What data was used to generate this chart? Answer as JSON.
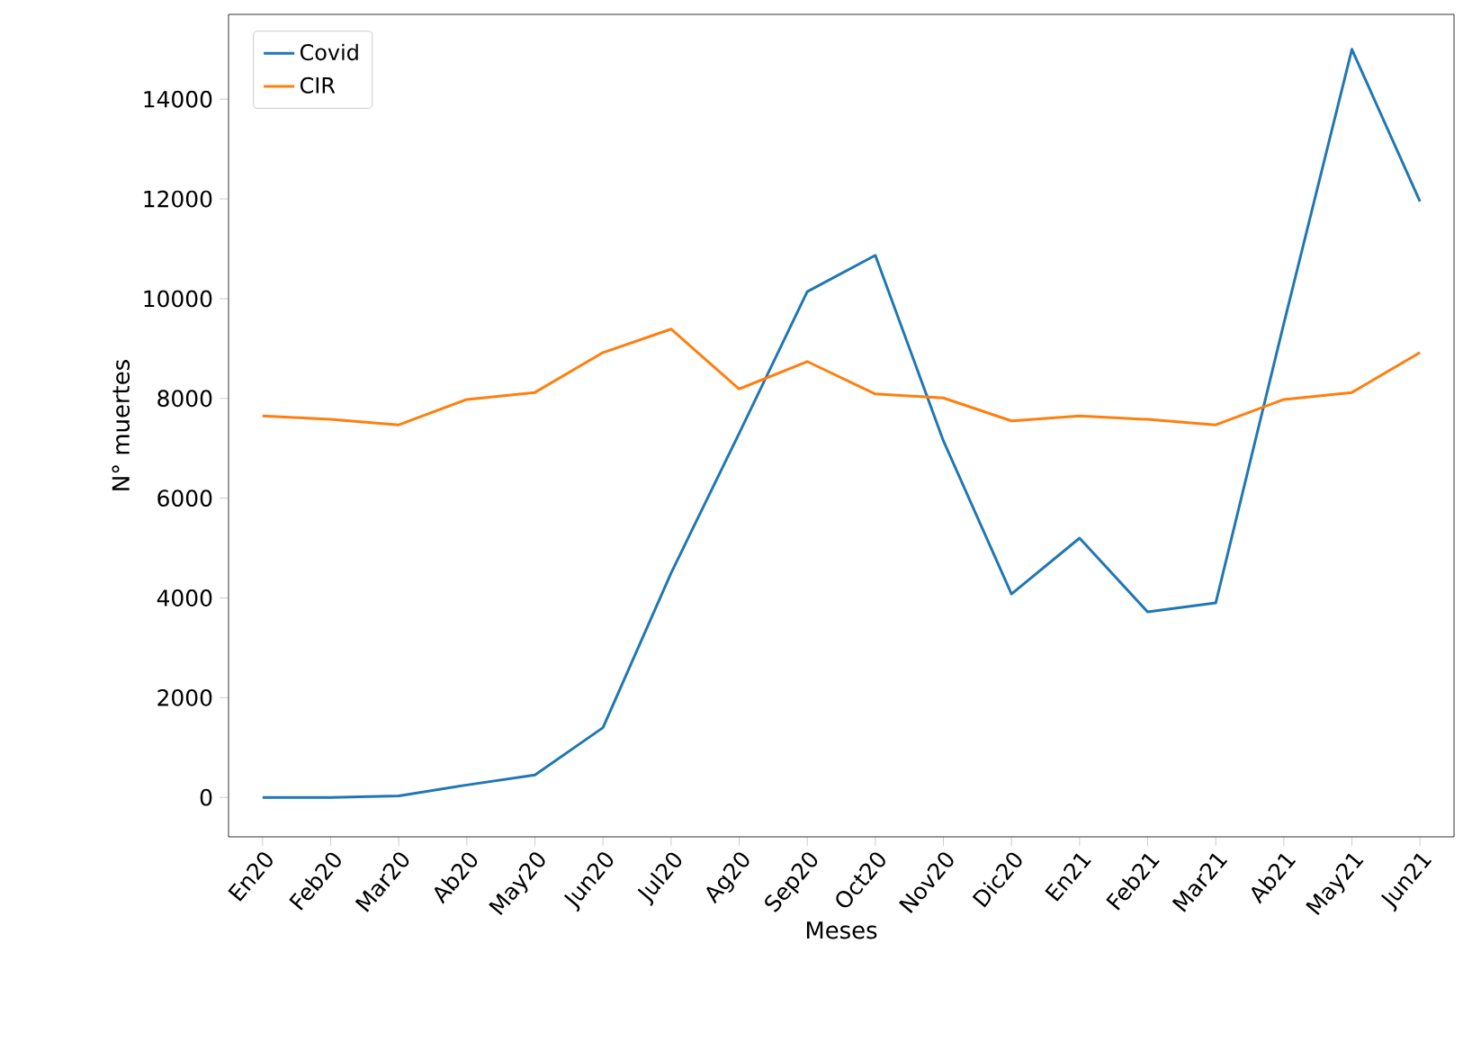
{
  "chart_data": {
    "type": "line",
    "xlabel": "Meses",
    "ylabel": "N° muertes",
    "categories": [
      "En20",
      "Feb20",
      "Mar20",
      "Ab20",
      "May20",
      "Jun20",
      "Jul20",
      "Ag20",
      "Sep20",
      "Oct20",
      "Nov20",
      "Dic20",
      "En21",
      "Feb21",
      "Mar21",
      "Ab21",
      "May21",
      "Jun21"
    ],
    "series": [
      {
        "name": "Covid",
        "color": "#1f77b4",
        "values": [
          0,
          0,
          30,
          250,
          450,
          1400,
          4500,
          7300,
          10140,
          10870,
          7150,
          4080,
          5200,
          3720,
          3900,
          9500,
          15000,
          11950
        ]
      },
      {
        "name": "CIR",
        "color": "#ff7f0e",
        "values": [
          7650,
          7580,
          7470,
          7980,
          8120,
          8920,
          9390,
          8190,
          8740,
          8090,
          8010,
          7550,
          7650,
          7580,
          7470,
          7980,
          8120,
          8920
        ]
      }
    ],
    "ylim": [
      -790,
      15700
    ],
    "yticks": [
      0,
      2000,
      4000,
      6000,
      8000,
      10000,
      12000,
      14000
    ],
    "legend": "top left",
    "grid": false,
    "marker": "none",
    "line_style": "solid"
  }
}
